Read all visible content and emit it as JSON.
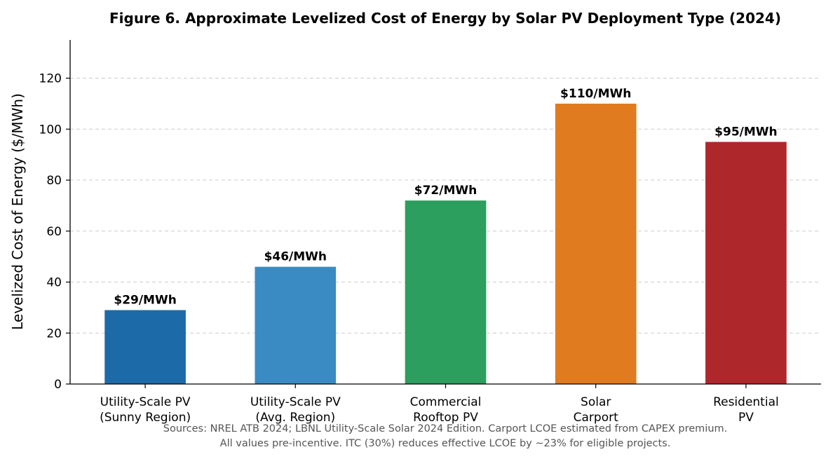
{
  "chart_data": {
    "type": "bar",
    "title": "Figure 6. Approximate Levelized Cost of Energy by Solar PV Deployment Type (2024)",
    "xlabel": "",
    "ylabel": "Levelized Cost of Energy ($/MWh)",
    "ylim": [
      0,
      135
    ],
    "yticks": [
      0,
      20,
      40,
      60,
      80,
      100,
      120
    ],
    "grid": "y-dashed",
    "categories": [
      [
        "Utility-Scale PV",
        "(Sunny Region)"
      ],
      [
        "Utility-Scale PV",
        "(Avg. Region)"
      ],
      [
        "Commercial",
        "Rooftop PV"
      ],
      [
        "Solar",
        "Carport"
      ],
      [
        "Residential",
        "PV"
      ]
    ],
    "values": [
      29,
      46,
      72,
      110,
      95
    ],
    "data_labels": [
      "$29/MWh",
      "$46/MWh",
      "$72/MWh",
      "$110/MWh",
      "$95/MWh"
    ],
    "colors": [
      "#1c6ba8",
      "#3a8bc4",
      "#2c9e5e",
      "#e07b1f",
      "#ae282b"
    ],
    "footnote": [
      "Sources: NREL ATB 2024; LBNL Utility-Scale Solar 2024 Edition. Carport LCOE estimated from CAPEX premium.",
      "All values pre-incentive. ITC (30%) reduces effective LCOE by ~23% for eligible projects."
    ]
  }
}
